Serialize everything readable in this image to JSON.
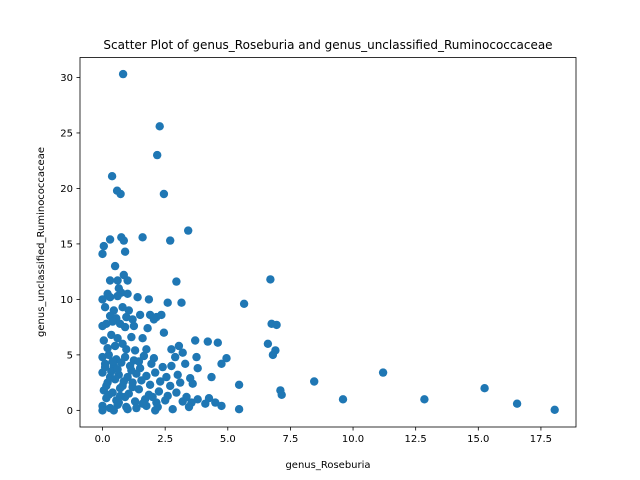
{
  "chart_data": {
    "type": "scatter",
    "title": "Scatter Plot of genus_Roseburia and genus_unclassified_Ruminococcaceae",
    "xlabel": "genus_Roseburia",
    "ylabel": "genus_unclassified_Ruminococcaceae",
    "xlim": [
      -0.9,
      18.9
    ],
    "ylim": [
      -1.5,
      31.8
    ],
    "xticks": [
      0.0,
      2.5,
      5.0,
      7.5,
      10.0,
      12.5,
      15.0,
      17.5
    ],
    "xtick_labels": [
      "0.0",
      "2.5",
      "5.0",
      "7.5",
      "10.0",
      "12.5",
      "15.0",
      "17.5"
    ],
    "yticks": [
      0,
      5,
      10,
      15,
      20,
      25,
      30
    ],
    "ytick_labels": [
      "0",
      "5",
      "10",
      "15",
      "20",
      "25",
      "30"
    ],
    "grid": false,
    "legend": "none",
    "marker_color": "#1f77b4",
    "points": [
      [
        0.82,
        30.3
      ],
      [
        2.28,
        25.6
      ],
      [
        2.18,
        23.0
      ],
      [
        0.38,
        21.1
      ],
      [
        0.58,
        19.8
      ],
      [
        0.72,
        19.5
      ],
      [
        2.45,
        19.5
      ],
      [
        3.42,
        16.2
      ],
      [
        0.05,
        14.8
      ],
      [
        0.0,
        14.1
      ],
      [
        0.3,
        15.4
      ],
      [
        0.75,
        15.6
      ],
      [
        0.85,
        15.3
      ],
      [
        1.6,
        15.6
      ],
      [
        2.7,
        15.3
      ],
      [
        0.9,
        14.3
      ],
      [
        0.5,
        13.0
      ],
      [
        0.85,
        12.2
      ],
      [
        1.0,
        11.7
      ],
      [
        2.95,
        11.6
      ],
      [
        6.7,
        11.8
      ],
      [
        0.3,
        11.7
      ],
      [
        0.6,
        11.7
      ],
      [
        0.65,
        11.0
      ],
      [
        0.75,
        10.6
      ],
      [
        1.0,
        10.5
      ],
      [
        0.0,
        10.0
      ],
      [
        0.2,
        10.5
      ],
      [
        0.3,
        10.2
      ],
      [
        0.6,
        10.3
      ],
      [
        1.4,
        10.2
      ],
      [
        1.85,
        10.0
      ],
      [
        2.6,
        9.7
      ],
      [
        3.15,
        9.7
      ],
      [
        5.65,
        9.6
      ],
      [
        0.1,
        9.3
      ],
      [
        0.45,
        9.0
      ],
      [
        0.8,
        9.3
      ],
      [
        1.05,
        9.0
      ],
      [
        0.3,
        8.5
      ],
      [
        0.55,
        8.3
      ],
      [
        0.95,
        8.4
      ],
      [
        1.2,
        8.2
      ],
      [
        1.5,
        8.6
      ],
      [
        1.9,
        8.6
      ],
      [
        2.15,
        8.4
      ],
      [
        2.35,
        8.6
      ],
      [
        0.0,
        7.6
      ],
      [
        0.15,
        7.8
      ],
      [
        0.4,
        8.0
      ],
      [
        0.7,
        7.8
      ],
      [
        0.9,
        7.5
      ],
      [
        1.25,
        7.6
      ],
      [
        1.8,
        7.4
      ],
      [
        2.05,
        8.2
      ],
      [
        6.75,
        7.8
      ],
      [
        6.95,
        7.7
      ],
      [
        0.05,
        6.3
      ],
      [
        0.35,
        6.8
      ],
      [
        0.6,
        6.5
      ],
      [
        0.8,
        6.0
      ],
      [
        1.15,
        6.6
      ],
      [
        1.6,
        6.5
      ],
      [
        2.45,
        7.0
      ],
      [
        0.2,
        5.6
      ],
      [
        0.5,
        5.8
      ],
      [
        0.95,
        5.5
      ],
      [
        1.3,
        5.4
      ],
      [
        1.75,
        5.5
      ],
      [
        2.75,
        5.5
      ],
      [
        3.05,
        5.8
      ],
      [
        6.6,
        6.0
      ],
      [
        6.9,
        5.4
      ],
      [
        0.0,
        4.8
      ],
      [
        0.25,
        5.0
      ],
      [
        0.55,
        4.6
      ],
      [
        0.9,
        4.8
      ],
      [
        1.25,
        4.5
      ],
      [
        1.65,
        4.9
      ],
      [
        2.05,
        4.7
      ],
      [
        2.9,
        4.8
      ],
      [
        3.2,
        5.2
      ],
      [
        3.75,
        4.8
      ],
      [
        4.95,
        4.7
      ],
      [
        6.8,
        5.0
      ],
      [
        0.1,
        4.2
      ],
      [
        0.45,
        4.0
      ],
      [
        0.75,
        4.3
      ],
      [
        1.1,
        4.0
      ],
      [
        1.5,
        3.8
      ],
      [
        1.95,
        4.2
      ],
      [
        2.4,
        3.9
      ],
      [
        2.75,
        4.0
      ],
      [
        3.3,
        4.2
      ],
      [
        3.8,
        3.8
      ],
      [
        4.2,
        6.2
      ],
      [
        4.6,
        6.1
      ],
      [
        3.7,
        6.3
      ],
      [
        4.75,
        4.2
      ],
      [
        0.0,
        3.4
      ],
      [
        0.35,
        3.5
      ],
      [
        0.65,
        3.2
      ],
      [
        1.0,
        3.0
      ],
      [
        1.35,
        3.3
      ],
      [
        1.75,
        3.1
      ],
      [
        2.1,
        3.4
      ],
      [
        2.55,
        3.0
      ],
      [
        3.0,
        3.2
      ],
      [
        3.5,
        2.9
      ],
      [
        4.35,
        3.0
      ],
      [
        5.45,
        2.3
      ],
      [
        0.2,
        2.5
      ],
      [
        0.5,
        2.8
      ],
      [
        0.8,
        2.2
      ],
      [
        1.2,
        2.5
      ],
      [
        1.55,
        2.7
      ],
      [
        1.9,
        2.3
      ],
      [
        2.3,
        2.6
      ],
      [
        2.7,
        2.2
      ],
      [
        3.1,
        2.5
      ],
      [
        3.6,
        2.4
      ],
      [
        7.1,
        1.8
      ],
      [
        8.45,
        2.6
      ],
      [
        11.2,
        3.4
      ],
      [
        15.25,
        2.0
      ],
      [
        0.05,
        1.8
      ],
      [
        0.4,
        1.6
      ],
      [
        0.7,
        2.0
      ],
      [
        1.05,
        1.5
      ],
      [
        1.45,
        1.9
      ],
      [
        1.85,
        1.4
      ],
      [
        2.25,
        1.7
      ],
      [
        2.6,
        1.3
      ],
      [
        2.95,
        1.6
      ],
      [
        3.35,
        1.2
      ],
      [
        3.8,
        1.0
      ],
      [
        4.25,
        1.1
      ],
      [
        7.15,
        1.4
      ],
      [
        0.15,
        1.1
      ],
      [
        0.55,
        0.9
      ],
      [
        0.9,
        1.2
      ],
      [
        1.3,
        0.8
      ],
      [
        1.7,
        1.0
      ],
      [
        2.15,
        0.7
      ],
      [
        2.5,
        0.9
      ],
      [
        3.2,
        0.8
      ],
      [
        3.55,
        0.7
      ],
      [
        4.1,
        0.6
      ],
      [
        4.5,
        0.7
      ],
      [
        4.75,
        0.4
      ],
      [
        9.6,
        1.0
      ],
      [
        12.85,
        1.0
      ],
      [
        16.55,
        0.6
      ],
      [
        0.0,
        0.4
      ],
      [
        0.3,
        0.2
      ],
      [
        0.6,
        0.5
      ],
      [
        0.95,
        0.3
      ],
      [
        1.35,
        0.2
      ],
      [
        1.75,
        0.4
      ],
      [
        2.2,
        0.3
      ],
      [
        2.8,
        0.1
      ],
      [
        3.45,
        0.3
      ],
      [
        5.45,
        0.1
      ],
      [
        18.05,
        0.05
      ],
      [
        0.0,
        0.0
      ],
      [
        0.45,
        0.0
      ],
      [
        1.0,
        0.1
      ],
      [
        2.1,
        0.0
      ],
      [
        0.1,
        3.9
      ],
      [
        0.3,
        3.0
      ],
      [
        0.6,
        3.7
      ],
      [
        1.15,
        3.6
      ],
      [
        0.25,
        1.4
      ],
      [
        0.65,
        0.7
      ],
      [
        1.2,
        2.1
      ],
      [
        0.85,
        2.6
      ],
      [
        0.4,
        4.4
      ],
      [
        1.45,
        4.4
      ],
      [
        2.0,
        1.2
      ],
      [
        0.15,
        2.2
      ],
      [
        0.7,
        1.3
      ],
      [
        1.6,
        0.6
      ]
    ]
  }
}
